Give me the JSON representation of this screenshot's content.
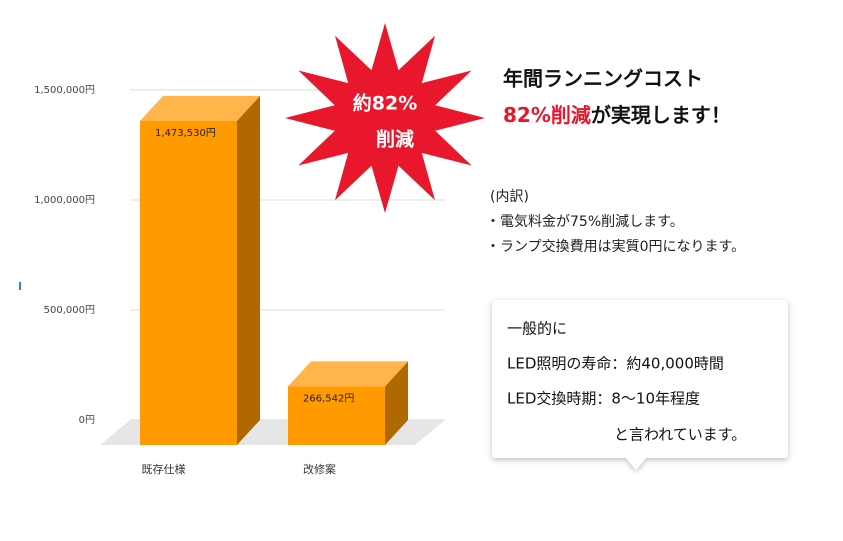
{
  "chart_data": {
    "type": "bar3d",
    "categories": [
      "既存仕様",
      "改修案"
    ],
    "values": [
      1473530,
      266542
    ],
    "value_labels": [
      "1,473,530円",
      "266,542円"
    ],
    "color": "#ff9a00",
    "ylim": [
      0,
      1500000
    ],
    "yticks": [
      {
        "value": 0,
        "label": "0円"
      },
      {
        "value": 500000,
        "label": "500,000円"
      },
      {
        "value": 1000000,
        "label": "1,000,000円"
      },
      {
        "value": 1500000,
        "label": "1,500,000円"
      }
    ],
    "grid": true
  },
  "badge": {
    "line1": "約82%",
    "line2": "削減"
  },
  "headline": {
    "line1": "年間ランニングコスト",
    "highlight": "82%削減",
    "rest": "が実現します！"
  },
  "breakdown": {
    "title": "(内訳)",
    "items": [
      "・電気料金が75%削減します。",
      "・ランプ交換費用は実質0円になります。"
    ]
  },
  "callout": {
    "lines": [
      "一般的に",
      "LED照明の寿命：約40,000時間",
      "LED交換時期：8〜10年程度",
      "と言われています。"
    ]
  }
}
